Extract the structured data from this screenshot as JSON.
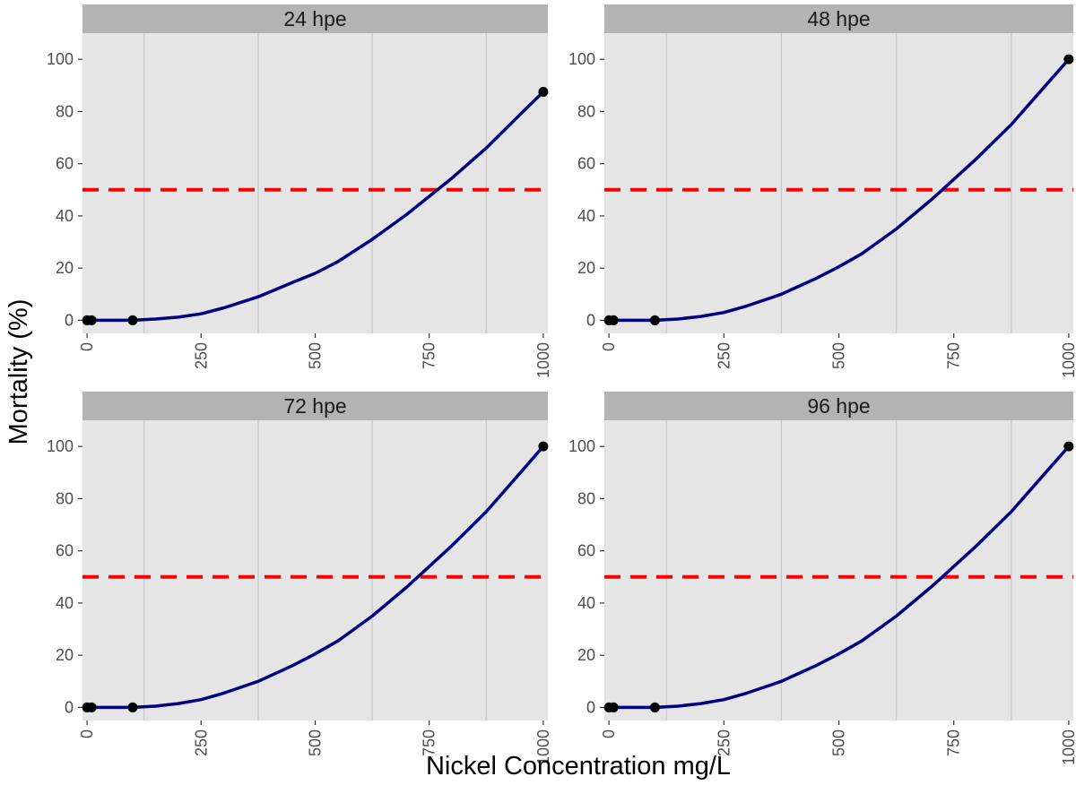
{
  "chart_data": {
    "type": "line",
    "xlabel": "Nickel Concentration mg/L",
    "ylabel": "Mortality (%)",
    "xlim": [
      -10,
      1010
    ],
    "ylim": [
      -5,
      110
    ],
    "x_ticks": [
      0,
      250,
      500,
      750,
      1000
    ],
    "y_ticks": [
      0,
      20,
      40,
      60,
      80,
      100
    ],
    "reference_line": {
      "y": 50,
      "color": "#ff0000",
      "style": "dashed"
    },
    "colors": {
      "curve": "#000080",
      "points": "#000000",
      "panel_bg": "#e5e5e5",
      "strip_bg": "#b3b3b3",
      "grid": "#c8c8c8"
    },
    "panels": [
      {
        "strip": "24 hpe",
        "points": [
          {
            "x": 0,
            "y": 0
          },
          {
            "x": 10,
            "y": 0
          },
          {
            "x": 100,
            "y": 0
          },
          {
            "x": 1000,
            "y": 87.5
          }
        ],
        "curve": [
          {
            "x": 0,
            "y": 0
          },
          {
            "x": 100,
            "y": 0
          },
          {
            "x": 150,
            "y": 0.5
          },
          {
            "x": 200,
            "y": 1.2
          },
          {
            "x": 250,
            "y": 2.5
          },
          {
            "x": 300,
            "y": 4.8
          },
          {
            "x": 375,
            "y": 9.0
          },
          {
            "x": 450,
            "y": 14.5
          },
          {
            "x": 500,
            "y": 18.0
          },
          {
            "x": 550,
            "y": 22.5
          },
          {
            "x": 625,
            "y": 31.0
          },
          {
            "x": 700,
            "y": 40.5
          },
          {
            "x": 750,
            "y": 47.5
          },
          {
            "x": 800,
            "y": 54.5
          },
          {
            "x": 875,
            "y": 66.0
          },
          {
            "x": 950,
            "y": 79.0
          },
          {
            "x": 1000,
            "y": 87.5
          }
        ]
      },
      {
        "strip": "48 hpe",
        "points": [
          {
            "x": 0,
            "y": 0
          },
          {
            "x": 10,
            "y": 0
          },
          {
            "x": 100,
            "y": 0
          },
          {
            "x": 1000,
            "y": 100
          }
        ],
        "curve": [
          {
            "x": 0,
            "y": 0
          },
          {
            "x": 100,
            "y": 0
          },
          {
            "x": 150,
            "y": 0.5
          },
          {
            "x": 200,
            "y": 1.5
          },
          {
            "x": 250,
            "y": 3.0
          },
          {
            "x": 300,
            "y": 5.5
          },
          {
            "x": 375,
            "y": 10.0
          },
          {
            "x": 450,
            "y": 16.0
          },
          {
            "x": 500,
            "y": 20.5
          },
          {
            "x": 550,
            "y": 25.5
          },
          {
            "x": 625,
            "y": 35.0
          },
          {
            "x": 700,
            "y": 46.0
          },
          {
            "x": 725,
            "y": 50.0
          },
          {
            "x": 800,
            "y": 62.0
          },
          {
            "x": 875,
            "y": 75.0
          },
          {
            "x": 950,
            "y": 90.0
          },
          {
            "x": 1000,
            "y": 100.0
          }
        ]
      },
      {
        "strip": "72 hpe",
        "points": [
          {
            "x": 0,
            "y": 0
          },
          {
            "x": 10,
            "y": 0
          },
          {
            "x": 100,
            "y": 0
          },
          {
            "x": 1000,
            "y": 100
          }
        ],
        "curve": [
          {
            "x": 0,
            "y": 0
          },
          {
            "x": 100,
            "y": 0
          },
          {
            "x": 150,
            "y": 0.5
          },
          {
            "x": 200,
            "y": 1.5
          },
          {
            "x": 250,
            "y": 3.0
          },
          {
            "x": 300,
            "y": 5.5
          },
          {
            "x": 375,
            "y": 10.0
          },
          {
            "x": 450,
            "y": 16.0
          },
          {
            "x": 500,
            "y": 20.5
          },
          {
            "x": 550,
            "y": 25.5
          },
          {
            "x": 625,
            "y": 35.0
          },
          {
            "x": 700,
            "y": 46.0
          },
          {
            "x": 725,
            "y": 50.0
          },
          {
            "x": 800,
            "y": 62.0
          },
          {
            "x": 875,
            "y": 75.0
          },
          {
            "x": 950,
            "y": 90.0
          },
          {
            "x": 1000,
            "y": 100.0
          }
        ]
      },
      {
        "strip": "96 hpe",
        "points": [
          {
            "x": 0,
            "y": 0
          },
          {
            "x": 10,
            "y": 0
          },
          {
            "x": 100,
            "y": 0
          },
          {
            "x": 1000,
            "y": 100
          }
        ],
        "curve": [
          {
            "x": 0,
            "y": 0
          },
          {
            "x": 100,
            "y": 0
          },
          {
            "x": 150,
            "y": 0.5
          },
          {
            "x": 200,
            "y": 1.5
          },
          {
            "x": 250,
            "y": 3.0
          },
          {
            "x": 300,
            "y": 5.5
          },
          {
            "x": 375,
            "y": 10.0
          },
          {
            "x": 450,
            "y": 16.0
          },
          {
            "x": 500,
            "y": 20.5
          },
          {
            "x": 550,
            "y": 25.5
          },
          {
            "x": 625,
            "y": 35.0
          },
          {
            "x": 700,
            "y": 46.0
          },
          {
            "x": 725,
            "y": 50.0
          },
          {
            "x": 800,
            "y": 62.0
          },
          {
            "x": 875,
            "y": 75.0
          },
          {
            "x": 950,
            "y": 90.0
          },
          {
            "x": 1000,
            "y": 100.0
          }
        ]
      }
    ]
  }
}
